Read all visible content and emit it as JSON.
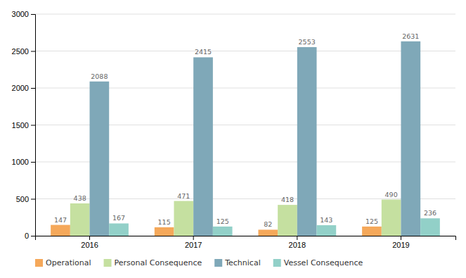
{
  "chart_data": {
    "type": "bar",
    "categories": [
      "2016",
      "2017",
      "2018",
      "2019"
    ],
    "series": [
      {
        "name": "Operational",
        "color": "#f5a85a",
        "values": [
          147,
          115,
          82,
          125
        ]
      },
      {
        "name": "Personal Consequence",
        "color": "#c5e0a0",
        "values": [
          438,
          471,
          418,
          490
        ]
      },
      {
        "name": "Technical",
        "color": "#7fa8b8",
        "values": [
          2088,
          2415,
          2553,
          2631
        ]
      },
      {
        "name": "Vessel Consequence",
        "color": "#92d0c8",
        "values": [
          167,
          125,
          143,
          236
        ]
      }
    ],
    "ylim": [
      0,
      3000
    ],
    "yticks": [
      0,
      500,
      1000,
      1500,
      2000,
      2500,
      3000
    ],
    "grid": true,
    "data_labels": true,
    "legend": "bottom"
  }
}
